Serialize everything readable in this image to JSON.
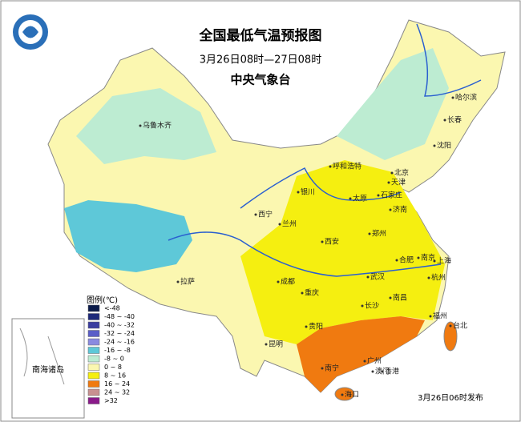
{
  "header": {
    "title": "全国最低气温预报图",
    "subtitle": "3月26日08时—27日08时",
    "issuer": "中央气象台"
  },
  "legend": {
    "title": "图例(℃)",
    "items": [
      {
        "label": "<-48",
        "color": "#0a1a4a"
      },
      {
        "label": "-48 ~ -40",
        "color": "#1e2a7a"
      },
      {
        "label": "-40 ~ -32",
        "color": "#3b3ea0"
      },
      {
        "label": "-32 ~ -24",
        "color": "#5a5ec8"
      },
      {
        "label": "-24 ~ -16",
        "color": "#8a8ae0"
      },
      {
        "label": "-16 ~ -8",
        "color": "#5ec8d8"
      },
      {
        "label": "-8 ~ 0",
        "color": "#bdecd2"
      },
      {
        "label": "0 ~ 8",
        "color": "#fbf7b0"
      },
      {
        "label": "8 ~ 16",
        "color": "#f5ef10"
      },
      {
        "label": "16 ~ 24",
        "color": "#f07a10"
      },
      {
        "label": "24 ~ 32",
        "color": "#c89090"
      },
      {
        "label": ">32",
        "color": "#8a1a8a"
      }
    ]
  },
  "cities": [
    "乌鲁木齐",
    "哈尔滨",
    "长春",
    "沈阳",
    "呼和浩特",
    "北京",
    "天津",
    "银川",
    "太原",
    "石家庄",
    "济南",
    "西宁",
    "兰州",
    "郑州",
    "西安",
    "合肥",
    "南京",
    "上海",
    "拉萨",
    "成都",
    "武汉",
    "杭州",
    "重庆",
    "长沙",
    "南昌",
    "贵阳",
    "福州",
    "台北",
    "昆明",
    "南宁",
    "广州",
    "香港",
    "澳门",
    "海口"
  ],
  "inset_label": "南海诸岛",
  "release_note": "3月26日06时发布"
}
